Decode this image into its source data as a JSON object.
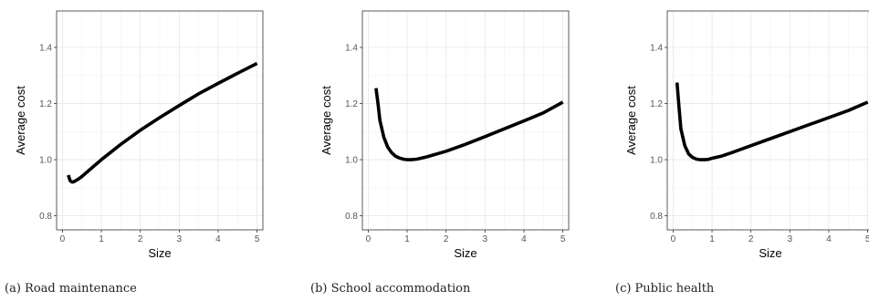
{
  "chart_data": [
    {
      "type": "line",
      "xlabel": "Size",
      "ylabel": "Average cost",
      "xlim": [
        -0.15,
        5.15
      ],
      "ylim": [
        0.75,
        1.53
      ],
      "xticks": [
        0,
        1,
        2,
        3,
        4,
        5
      ],
      "yticks": [
        0.8,
        1.0,
        1.2,
        1.4
      ],
      "x": [
        0.15,
        0.2,
        0.25,
        0.3,
        0.4,
        0.5,
        0.75,
        1.0,
        1.5,
        2.0,
        2.5,
        3.0,
        3.5,
        4.0,
        4.5,
        5.0
      ],
      "y": [
        0.945,
        0.925,
        0.92,
        0.922,
        0.93,
        0.94,
        0.97,
        1.0,
        1.055,
        1.105,
        1.15,
        1.193,
        1.235,
        1.272,
        1.308,
        1.343
      ],
      "caption": "(a) Road maintenance"
    },
    {
      "type": "line",
      "xlabel": "Size",
      "ylabel": "Average cost",
      "xlim": [
        -0.15,
        5.15
      ],
      "ylim": [
        0.75,
        1.53
      ],
      "xticks": [
        0,
        1,
        2,
        3,
        4,
        5
      ],
      "yticks": [
        0.8,
        1.0,
        1.2,
        1.4
      ],
      "x": [
        0.2,
        0.25,
        0.3,
        0.4,
        0.5,
        0.6,
        0.7,
        0.8,
        0.9,
        1.0,
        1.1,
        1.25,
        1.5,
        2.0,
        2.5,
        3.0,
        3.5,
        4.0,
        4.5,
        5.0
      ],
      "y": [
        1.255,
        1.2,
        1.14,
        1.08,
        1.045,
        1.025,
        1.013,
        1.006,
        1.002,
        1.0,
        1.0,
        1.002,
        1.01,
        1.03,
        1.055,
        1.082,
        1.11,
        1.138,
        1.167,
        1.205
      ],
      "caption": "(b) School accommodation"
    },
    {
      "type": "line",
      "xlabel": "Size",
      "ylabel": "Average cost",
      "xlim": [
        -0.15,
        5.15
      ],
      "ylim": [
        0.75,
        1.53
      ],
      "xticks": [
        0,
        1,
        2,
        3,
        4,
        5
      ],
      "yticks": [
        0.8,
        1.0,
        1.2,
        1.4
      ],
      "x": [
        0.1,
        0.15,
        0.2,
        0.3,
        0.4,
        0.5,
        0.6,
        0.7,
        0.8,
        0.9,
        1.0,
        1.25,
        1.5,
        2.0,
        2.5,
        3.0,
        3.5,
        4.0,
        4.5,
        5.0
      ],
      "y": [
        1.275,
        1.19,
        1.11,
        1.05,
        1.02,
        1.008,
        1.002,
        1.0,
        1.0,
        1.001,
        1.005,
        1.013,
        1.025,
        1.05,
        1.075,
        1.1,
        1.125,
        1.15,
        1.175,
        1.205
      ],
      "caption": "(c) Public health"
    }
  ]
}
